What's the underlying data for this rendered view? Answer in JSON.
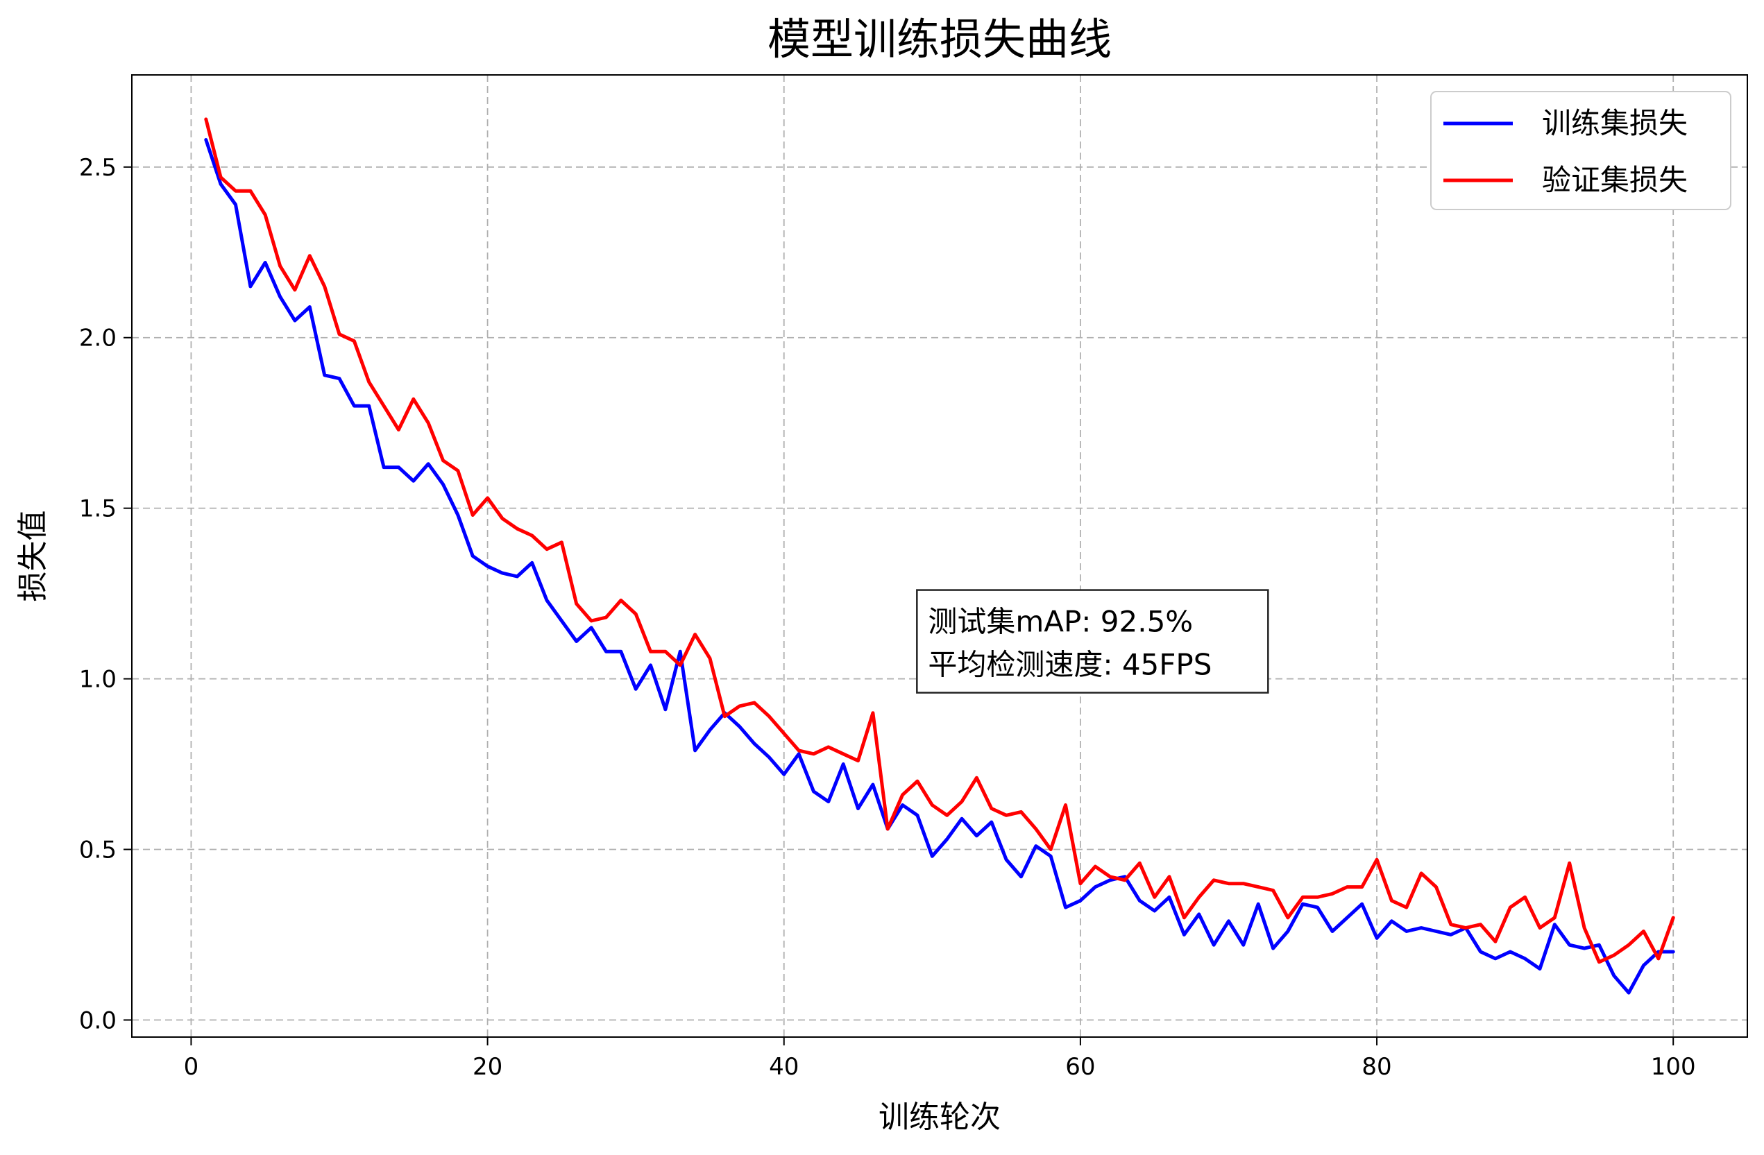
{
  "chart_data": {
    "type": "line",
    "title": "模型训练损失曲线",
    "xlabel": "训练轮次",
    "ylabel": "损失值",
    "xlim": [
      -4.0,
      105.0
    ],
    "ylim": [
      -0.05,
      2.77
    ],
    "xticks": [
      0,
      20,
      40,
      60,
      80,
      100
    ],
    "xtick_labels": [
      "0",
      "20",
      "40",
      "60",
      "80",
      "100"
    ],
    "yticks": [
      0.0,
      0.5,
      1.0,
      1.5,
      2.0,
      2.5
    ],
    "ytick_labels": [
      "0.0",
      "0.5",
      "1.0",
      "1.5",
      "2.0",
      "2.5"
    ],
    "grid": true,
    "legend_position": "top-right",
    "x": [
      1,
      2,
      3,
      4,
      5,
      6,
      7,
      8,
      9,
      10,
      11,
      12,
      13,
      14,
      15,
      16,
      17,
      18,
      19,
      20,
      21,
      22,
      23,
      24,
      25,
      26,
      27,
      28,
      29,
      30,
      31,
      32,
      33,
      34,
      35,
      36,
      37,
      38,
      39,
      40,
      41,
      42,
      43,
      44,
      45,
      46,
      47,
      48,
      49,
      50,
      51,
      52,
      53,
      54,
      55,
      56,
      57,
      58,
      59,
      60,
      61,
      62,
      63,
      64,
      65,
      66,
      67,
      68,
      69,
      70,
      71,
      72,
      73,
      74,
      75,
      76,
      77,
      78,
      79,
      80,
      81,
      82,
      83,
      84,
      85,
      86,
      87,
      88,
      89,
      90,
      91,
      92,
      93,
      94,
      95,
      96,
      97,
      98,
      99,
      100
    ],
    "series": [
      {
        "name": "训练集损失",
        "color": "#0000ff",
        "values": [
          2.58,
          2.45,
          2.39,
          2.15,
          2.22,
          2.12,
          2.05,
          2.09,
          1.89,
          1.88,
          1.8,
          1.8,
          1.62,
          1.62,
          1.58,
          1.63,
          1.57,
          1.48,
          1.36,
          1.33,
          1.31,
          1.3,
          1.34,
          1.23,
          1.17,
          1.11,
          1.15,
          1.08,
          1.08,
          0.97,
          1.04,
          0.91,
          1.08,
          0.79,
          0.85,
          0.9,
          0.86,
          0.81,
          0.77,
          0.72,
          0.78,
          0.67,
          0.64,
          0.75,
          0.62,
          0.69,
          0.56,
          0.63,
          0.6,
          0.48,
          0.53,
          0.59,
          0.54,
          0.58,
          0.47,
          0.42,
          0.51,
          0.48,
          0.33,
          0.35,
          0.39,
          0.41,
          0.42,
          0.35,
          0.32,
          0.36,
          0.25,
          0.31,
          0.22,
          0.29,
          0.22,
          0.34,
          0.21,
          0.26,
          0.34,
          0.33,
          0.26,
          0.3,
          0.34,
          0.24,
          0.29,
          0.26,
          0.27,
          0.26,
          0.25,
          0.27,
          0.2,
          0.18,
          0.2,
          0.18,
          0.15,
          0.28,
          0.22,
          0.21,
          0.22,
          0.13,
          0.08,
          0.16,
          0.2,
          0.2
        ]
      },
      {
        "name": "验证集损失",
        "color": "#ff0000",
        "values": [
          2.64,
          2.47,
          2.43,
          2.43,
          2.36,
          2.21,
          2.14,
          2.24,
          2.15,
          2.01,
          1.99,
          1.87,
          1.8,
          1.73,
          1.82,
          1.75,
          1.64,
          1.61,
          1.48,
          1.53,
          1.47,
          1.44,
          1.42,
          1.38,
          1.4,
          1.22,
          1.17,
          1.18,
          1.23,
          1.19,
          1.08,
          1.08,
          1.04,
          1.13,
          1.06,
          0.89,
          0.92,
          0.93,
          0.89,
          0.84,
          0.79,
          0.78,
          0.8,
          0.78,
          0.76,
          0.9,
          0.56,
          0.66,
          0.7,
          0.63,
          0.6,
          0.64,
          0.71,
          0.62,
          0.6,
          0.61,
          0.56,
          0.5,
          0.63,
          0.4,
          0.45,
          0.42,
          0.41,
          0.46,
          0.36,
          0.42,
          0.3,
          0.36,
          0.41,
          0.4,
          0.4,
          0.39,
          0.38,
          0.3,
          0.36,
          0.36,
          0.37,
          0.39,
          0.39,
          0.47,
          0.35,
          0.33,
          0.43,
          0.39,
          0.28,
          0.27,
          0.28,
          0.23,
          0.33,
          0.36,
          0.27,
          0.3,
          0.46,
          0.27,
          0.17,
          0.19,
          0.22,
          0.26,
          0.18,
          0.3
        ]
      }
    ],
    "annotation": {
      "lines": [
        "测试集mAP: 92.5%",
        "平均检测速度: 45FPS"
      ],
      "anchor_x": 50,
      "anchor_y": 1.0
    }
  }
}
